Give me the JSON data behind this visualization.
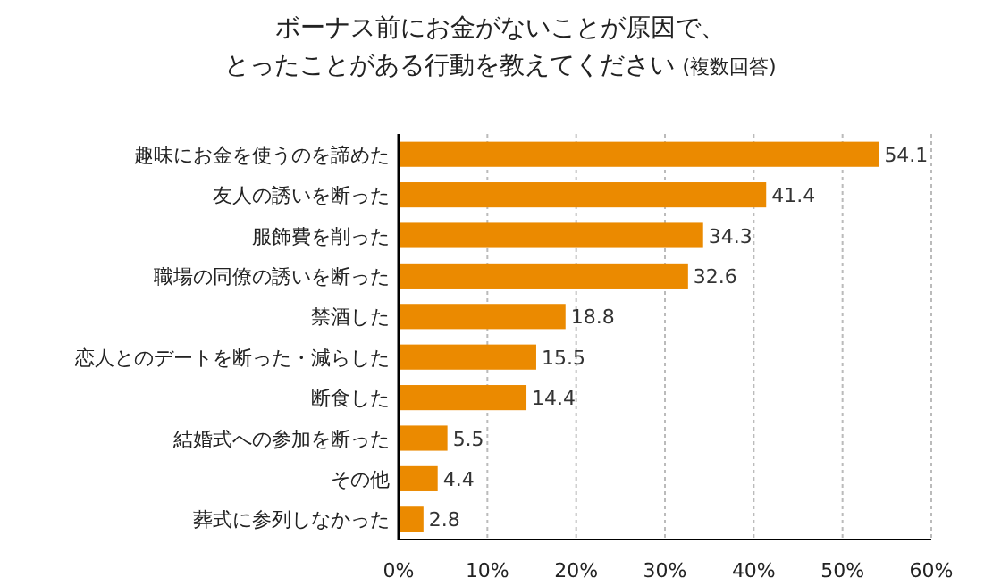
{
  "chart_data": {
    "type": "bar",
    "orientation": "horizontal",
    "title": [
      "ボーナス前にお金がないことが原因で、",
      "とったことがある行動を教えてください"
    ],
    "subtitle": "(複数回答)",
    "categories": [
      "趣味にお金を使うのを諦めた",
      "友人の誘いを断った",
      "服飾費を削った",
      "職場の同僚の誘いを断った",
      "禁酒した",
      "恋人とのデートを断った・減らした",
      "断食した",
      "結婚式への参加を断った",
      "その他",
      "葬式に参列しなかった"
    ],
    "values": [
      54.1,
      41.4,
      34.3,
      32.6,
      18.8,
      15.5,
      14.4,
      5.5,
      4.4,
      2.8
    ],
    "color": "#eb8a00",
    "xlim": [
      0,
      60
    ],
    "xticks": [
      {
        "value": 0,
        "label": "0%"
      },
      {
        "value": 10,
        "label": "10%"
      },
      {
        "value": 20,
        "label": "20%"
      },
      {
        "value": 30,
        "label": "30%"
      },
      {
        "value": 40,
        "label": "40%"
      },
      {
        "value": 50,
        "label": "50%"
      },
      {
        "value": 60,
        "label": "60%"
      }
    ],
    "grid": "x",
    "data_labels": true
  }
}
